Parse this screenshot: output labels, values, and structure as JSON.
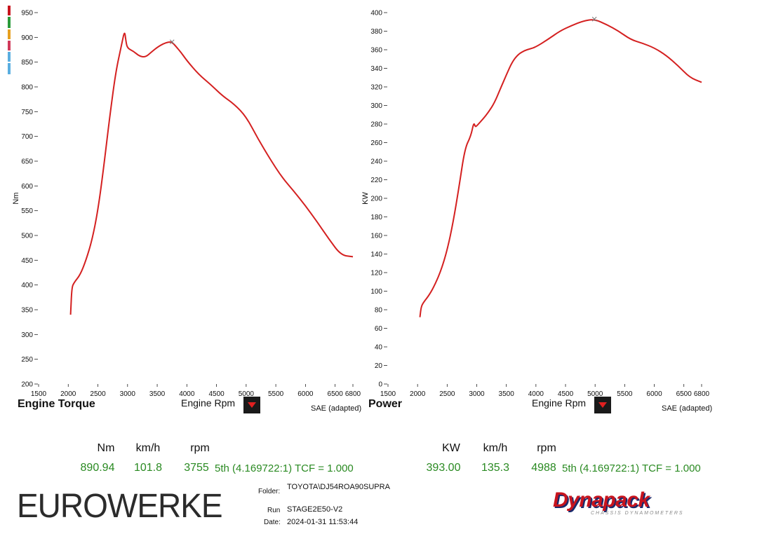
{
  "chart_data": [
    {
      "type": "line",
      "title": "Engine Torque",
      "xlabel": "Engine Rpm",
      "ylabel": "Nm",
      "note": "SAE (adapted)",
      "xlim": [
        1500,
        6800
      ],
      "ylim": [
        200,
        950
      ],
      "xticks": [
        1500,
        2000,
        2500,
        3000,
        3500,
        4000,
        4500,
        5000,
        5500,
        6000,
        6500,
        6800
      ],
      "yticks": [
        200,
        250,
        300,
        350,
        400,
        450,
        500,
        550,
        600,
        650,
        700,
        750,
        800,
        850,
        900,
        950
      ],
      "series": [
        {
          "color": "#d42020",
          "x": [
            2040,
            2060,
            2100,
            2200,
            2300,
            2400,
            2500,
            2600,
            2700,
            2800,
            2900,
            2950,
            2975,
            3000,
            3100,
            3200,
            3300,
            3400,
            3500,
            3600,
            3700,
            3750,
            3800,
            3900,
            4000,
            4200,
            4400,
            4600,
            4800,
            5000,
            5200,
            5400,
            5600,
            5800,
            6000,
            6200,
            6400,
            6600,
            6800
          ],
          "y": [
            340,
            395,
            405,
            420,
            450,
            490,
            550,
            640,
            740,
            830,
            885,
            915,
            890,
            878,
            872,
            862,
            860,
            870,
            880,
            887,
            891,
            890,
            884,
            870,
            853,
            825,
            805,
            782,
            765,
            740,
            695,
            655,
            618,
            590,
            560,
            527,
            492,
            460,
            457
          ]
        }
      ],
      "marker": {
        "x": 3750,
        "y": 890.94
      }
    },
    {
      "type": "line",
      "title": "Power",
      "xlabel": "Engine Rpm",
      "ylabel": "KW",
      "note": "SAE (adapted)",
      "xlim": [
        1500,
        6800
      ],
      "ylim": [
        0,
        400
      ],
      "xticks": [
        1500,
        2000,
        2500,
        3000,
        3500,
        4000,
        4500,
        5000,
        5500,
        6000,
        6500,
        6800
      ],
      "yticks": [
        0,
        20,
        40,
        60,
        80,
        100,
        120,
        140,
        160,
        180,
        200,
        220,
        240,
        260,
        280,
        300,
        320,
        340,
        360,
        380,
        400
      ],
      "series": [
        {
          "color": "#d42020",
          "x": [
            2040,
            2060,
            2100,
            2200,
            2300,
            2400,
            2500,
            2600,
            2700,
            2800,
            2900,
            2950,
            2975,
            3000,
            3100,
            3200,
            3300,
            3400,
            3500,
            3600,
            3700,
            3800,
            3900,
            4000,
            4200,
            4400,
            4600,
            4800,
            4988,
            5200,
            5400,
            5600,
            5800,
            6000,
            6200,
            6400,
            6600,
            6800
          ],
          "y": [
            72,
            83,
            88,
            96,
            108,
            123,
            144,
            174,
            212,
            254,
            267,
            282,
            277,
            278,
            285,
            293,
            303,
            318,
            333,
            347,
            355,
            359,
            361,
            363,
            371,
            380,
            386,
            391,
            393,
            387,
            380,
            371,
            367,
            362,
            354,
            343,
            330,
            325
          ]
        }
      ],
      "marker": {
        "x": 4988,
        "y": 393.0
      }
    }
  ],
  "readout_left": {
    "headers": [
      "Nm",
      "km/h",
      "rpm"
    ],
    "values": [
      "890.94",
      "101.8",
      "3755"
    ],
    "gear": "5th (4.169722:1) TCF = 1.000"
  },
  "readout_right": {
    "headers": [
      "KW",
      "km/h",
      "rpm"
    ],
    "values": [
      "393.00",
      "135.3",
      "4988"
    ],
    "gear": "5th (4.169722:1) TCF = 1.000"
  },
  "meta": {
    "folder_label": "Folder:",
    "folder_value": "TOYOTA\\DJ54ROA90SUPRA",
    "run_label": "Run",
    "run_value": "STAGE2E50-V2",
    "date_label": "Date:",
    "date_value": "2024-01-31 11:53:44"
  },
  "logos": {
    "left": "EUROWERKE",
    "right": "Dynapack",
    "right_sub": "CHASSIS DYNAMOMETERS"
  },
  "legend_colors": [
    "#c8141e",
    "#2a9a3a",
    "#e6a020",
    "#d03a5a",
    "#5aaee0",
    "#5aaee0"
  ]
}
